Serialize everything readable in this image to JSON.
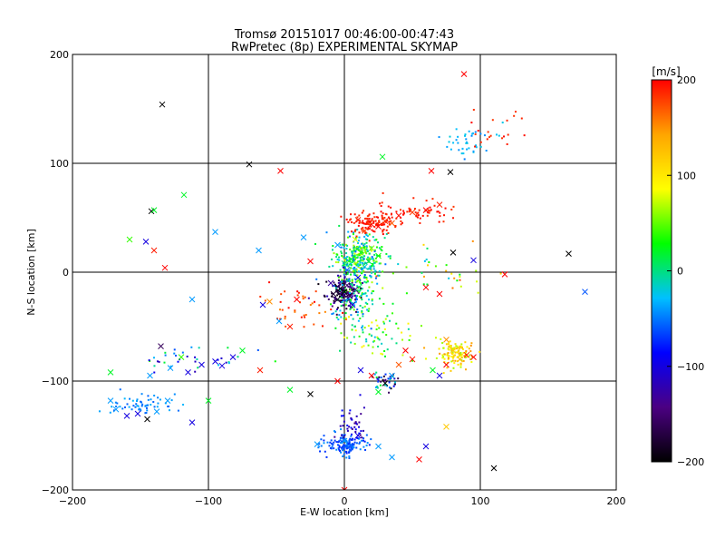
{
  "chart_data": {
    "type": "scatter",
    "title": "Tromsø 20151017 00:46:00-00:47:43",
    "subtitle": "RwPretec (8p) EXPERIMENTAL SKYMAP",
    "xlabel": "E-W location [km]",
    "ylabel": "N-S location [km]",
    "xlim": [
      -200,
      200
    ],
    "ylim": [
      -200,
      200
    ],
    "x_ticks": [
      "−200",
      "−100",
      "0",
      "100",
      "200"
    ],
    "y_ticks": [
      "200",
      "100",
      "0",
      "−100",
      "−200"
    ],
    "grid": "on",
    "colorbar": {
      "label": "[m/s]",
      "range": [
        -200,
        200
      ],
      "ticks": [
        "200",
        "100",
        "0",
        "−100",
        "−200"
      ],
      "colormap": [
        "#000000",
        "#4b0082",
        "#0000ff",
        "#00c0ff",
        "#00ff00",
        "#ffff00",
        "#ffa500",
        "#ff0000"
      ]
    },
    "points": [
      {
        "x": 0,
        "y": -18,
        "v": -200,
        "m": "x"
      },
      {
        "x": -3,
        "y": -15,
        "v": -190,
        "m": "x"
      },
      {
        "x": -8,
        "y": -20,
        "v": -180,
        "m": "x"
      },
      {
        "x": 4,
        "y": -22,
        "v": -160,
        "m": "x"
      },
      {
        "x": 2,
        "y": -12,
        "v": -150,
        "m": "x"
      },
      {
        "x": -5,
        "y": -25,
        "v": -170,
        "m": "x"
      },
      {
        "x": 8,
        "y": -16,
        "v": -140,
        "m": "x"
      },
      {
        "x": -10,
        "y": -10,
        "v": -130,
        "m": "x"
      },
      {
        "x": 6,
        "y": -30,
        "v": -110,
        "m": "x"
      },
      {
        "x": 10,
        "y": -5,
        "v": -90,
        "m": "x"
      },
      {
        "x": 5,
        "y": 12,
        "v": 20,
        "m": "x"
      },
      {
        "x": 12,
        "y": 18,
        "v": 40,
        "m": "x"
      },
      {
        "x": 0,
        "y": 8,
        "v": 0,
        "m": "x"
      },
      {
        "x": 15,
        "y": 5,
        "v": -20,
        "m": "x"
      },
      {
        "x": 20,
        "y": 22,
        "v": 60,
        "m": "x"
      },
      {
        "x": -5,
        "y": 25,
        "v": -40,
        "m": "x"
      },
      {
        "x": 8,
        "y": 30,
        "v": 80,
        "m": "x"
      },
      {
        "x": 18,
        "y": 10,
        "v": 10,
        "m": "x"
      },
      {
        "x": 25,
        "y": 15,
        "v": 30,
        "m": "x"
      },
      {
        "x": 2,
        "y": 2,
        "v": -60,
        "m": "x"
      },
      {
        "x": 10,
        "y": 48,
        "v": 190,
        "m": "x"
      },
      {
        "x": 20,
        "y": 44,
        "v": 200,
        "m": "x"
      },
      {
        "x": 30,
        "y": 47,
        "v": 185,
        "m": "x"
      },
      {
        "x": 40,
        "y": 52,
        "v": 195,
        "m": "x"
      },
      {
        "x": 50,
        "y": 55,
        "v": 180,
        "m": "x"
      },
      {
        "x": 60,
        "y": 57,
        "v": 200,
        "m": "x"
      },
      {
        "x": 70,
        "y": 62,
        "v": 190,
        "m": "x"
      },
      {
        "x": 15,
        "y": 38,
        "v": 175,
        "m": "x"
      },
      {
        "x": 25,
        "y": 42,
        "v": 200,
        "m": "x"
      },
      {
        "x": 35,
        "y": 45,
        "v": 170,
        "m": "x"
      },
      {
        "x": 88,
        "y": 182,
        "v": 200,
        "m": "x"
      },
      {
        "x": -134,
        "y": 154,
        "v": -200,
        "m": "x"
      },
      {
        "x": -70,
        "y": 99,
        "v": -200,
        "m": "x"
      },
      {
        "x": -47,
        "y": 93,
        "v": 200,
        "m": "x"
      },
      {
        "x": 28,
        "y": 106,
        "v": 20,
        "m": "x"
      },
      {
        "x": 64,
        "y": 93,
        "v": 200,
        "m": "x"
      },
      {
        "x": 78,
        "y": 92,
        "v": -200,
        "m": "x"
      },
      {
        "x": -142,
        "y": 56,
        "v": -200,
        "m": "x"
      },
      {
        "x": -140,
        "y": 57,
        "v": 20,
        "m": "x"
      },
      {
        "x": -158,
        "y": 30,
        "v": 40,
        "m": "x"
      },
      {
        "x": -146,
        "y": 28,
        "v": -100,
        "m": "x"
      },
      {
        "x": -140,
        "y": 20,
        "v": 190,
        "m": "x"
      },
      {
        "x": -132,
        "y": 4,
        "v": 200,
        "m": "x"
      },
      {
        "x": -118,
        "y": 71,
        "v": 20,
        "m": "x"
      },
      {
        "x": -95,
        "y": 37,
        "v": -40,
        "m": "x"
      },
      {
        "x": -63,
        "y": 20,
        "v": -40,
        "m": "x"
      },
      {
        "x": -30,
        "y": 32,
        "v": -40,
        "m": "x"
      },
      {
        "x": -25,
        "y": 10,
        "v": 200,
        "m": "x"
      },
      {
        "x": -35,
        "y": -25,
        "v": 200,
        "m": "x"
      },
      {
        "x": -40,
        "y": -50,
        "v": 190,
        "m": "x"
      },
      {
        "x": -55,
        "y": -27,
        "v": 150,
        "m": "x"
      },
      {
        "x": -112,
        "y": -25,
        "v": -40,
        "m": "x"
      },
      {
        "x": -60,
        "y": -30,
        "v": -100,
        "m": "x"
      },
      {
        "x": -48,
        "y": -45,
        "v": -40,
        "m": "x"
      },
      {
        "x": 80,
        "y": 18,
        "v": -200,
        "m": "x"
      },
      {
        "x": 95,
        "y": 11,
        "v": -100,
        "m": "x"
      },
      {
        "x": 118,
        "y": -2,
        "v": 200,
        "m": "x"
      },
      {
        "x": 165,
        "y": 17,
        "v": -200,
        "m": "x"
      },
      {
        "x": 177,
        "y": -18,
        "v": -60,
        "m": "x"
      },
      {
        "x": 60,
        "y": -14,
        "v": 200,
        "m": "x"
      },
      {
        "x": 70,
        "y": -20,
        "v": 200,
        "m": "x"
      },
      {
        "x": 75,
        "y": -62,
        "v": 150,
        "m": "x"
      },
      {
        "x": 80,
        "y": -72,
        "v": 120,
        "m": "x"
      },
      {
        "x": 85,
        "y": -80,
        "v": 130,
        "m": "x"
      },
      {
        "x": 90,
        "y": -76,
        "v": 190,
        "m": "x"
      },
      {
        "x": 95,
        "y": -78,
        "v": 200,
        "m": "x"
      },
      {
        "x": 75,
        "y": -85,
        "v": 200,
        "m": "x"
      },
      {
        "x": 70,
        "y": -95,
        "v": -100,
        "m": "x"
      },
      {
        "x": 65,
        "y": -90,
        "v": 20,
        "m": "x"
      },
      {
        "x": 50,
        "y": -80,
        "v": 190,
        "m": "x"
      },
      {
        "x": 45,
        "y": -72,
        "v": 200,
        "m": "x"
      },
      {
        "x": 40,
        "y": -85,
        "v": 170,
        "m": "x"
      },
      {
        "x": 35,
        "y": -95,
        "v": -40,
        "m": "x"
      },
      {
        "x": 30,
        "y": -102,
        "v": -200,
        "m": "x"
      },
      {
        "x": 25,
        "y": -110,
        "v": 20,
        "m": "x"
      },
      {
        "x": 20,
        "y": -95,
        "v": 200,
        "m": "x"
      },
      {
        "x": 12,
        "y": -90,
        "v": -100,
        "m": "x"
      },
      {
        "x": -5,
        "y": -100,
        "v": 200,
        "m": "x"
      },
      {
        "x": -25,
        "y": -112,
        "v": -200,
        "m": "x"
      },
      {
        "x": -40,
        "y": -108,
        "v": 20,
        "m": "x"
      },
      {
        "x": -120,
        "y": -78,
        "v": 40,
        "m": "x"
      },
      {
        "x": -135,
        "y": -68,
        "v": -160,
        "m": "x"
      },
      {
        "x": -128,
        "y": -88,
        "v": -40,
        "m": "x"
      },
      {
        "x": -115,
        "y": -92,
        "v": -100,
        "m": "x"
      },
      {
        "x": -105,
        "y": -85,
        "v": -100,
        "m": "x"
      },
      {
        "x": -95,
        "y": -82,
        "v": -100,
        "m": "x"
      },
      {
        "x": -90,
        "y": -86,
        "v": -100,
        "m": "x"
      },
      {
        "x": -82,
        "y": -78,
        "v": -100,
        "m": "x"
      },
      {
        "x": -75,
        "y": -72,
        "v": 20,
        "m": "x"
      },
      {
        "x": -62,
        "y": -90,
        "v": 190,
        "m": "x"
      },
      {
        "x": -172,
        "y": -118,
        "v": -40,
        "m": "x"
      },
      {
        "x": -168,
        "y": -126,
        "v": -40,
        "m": "x"
      },
      {
        "x": -160,
        "y": -132,
        "v": -100,
        "m": "x"
      },
      {
        "x": -152,
        "y": -130,
        "v": -100,
        "m": "x"
      },
      {
        "x": -145,
        "y": -135,
        "v": -200,
        "m": "x"
      },
      {
        "x": -138,
        "y": -128,
        "v": -40,
        "m": "x"
      },
      {
        "x": -130,
        "y": -118,
        "v": -40,
        "m": "x"
      },
      {
        "x": -112,
        "y": -138,
        "v": -100,
        "m": "x"
      },
      {
        "x": -100,
        "y": -118,
        "v": 20,
        "m": "x"
      },
      {
        "x": -172,
        "y": -92,
        "v": 20,
        "m": "x"
      },
      {
        "x": -143,
        "y": -95,
        "v": -40,
        "m": "x"
      },
      {
        "x": 0,
        "y": -155,
        "v": -40,
        "m": "x"
      },
      {
        "x": -20,
        "y": -158,
        "v": -40,
        "m": "x"
      },
      {
        "x": 10,
        "y": -150,
        "v": -100,
        "m": "x"
      },
      {
        "x": 25,
        "y": -160,
        "v": -40,
        "m": "x"
      },
      {
        "x": 35,
        "y": -170,
        "v": -40,
        "m": "x"
      },
      {
        "x": 55,
        "y": -172,
        "v": 200,
        "m": "x"
      },
      {
        "x": 60,
        "y": -160,
        "v": -100,
        "m": "x"
      },
      {
        "x": 75,
        "y": -142,
        "v": 120,
        "m": "x"
      },
      {
        "x": 110,
        "y": -180,
        "v": -200,
        "m": "x"
      },
      {
        "x": 0,
        "y": -200,
        "v": 200,
        "m": "x"
      }
    ],
    "clusters": [
      {
        "cx": 10,
        "cy": 12,
        "sx": 9,
        "sy": 12,
        "n": 320,
        "vmin": -60,
        "vmax": 80
      },
      {
        "cx": -2,
        "cy": -18,
        "sx": 6,
        "sy": 7,
        "n": 160,
        "vmin": -200,
        "vmax": -110
      },
      {
        "cx": 8,
        "cy": -25,
        "sx": 10,
        "sy": 14,
        "n": 140,
        "vmin": -60,
        "vmax": 60
      },
      {
        "cx": 20,
        "cy": 45,
        "sx": 10,
        "sy": 5,
        "n": 110,
        "vmin": 180,
        "vmax": 200
      },
      {
        "cx": 50,
        "cy": 55,
        "sx": 14,
        "sy": 5,
        "n": 70,
        "vmin": 180,
        "vmax": 200
      },
      {
        "cx": 82,
        "cy": -75,
        "sx": 7,
        "sy": 6,
        "n": 120,
        "vmin": 60,
        "vmax": 150
      },
      {
        "cx": 2,
        "cy": -158,
        "sx": 8,
        "sy": 5,
        "n": 140,
        "vmin": -80,
        "vmax": -40
      },
      {
        "cx": 5,
        "cy": -140,
        "sx": 5,
        "sy": 8,
        "n": 40,
        "vmin": -140,
        "vmax": -80
      },
      {
        "cx": 30,
        "cy": -100,
        "sx": 5,
        "sy": 4,
        "n": 40,
        "vmin": -200,
        "vmax": 30
      },
      {
        "cx": 25,
        "cy": -60,
        "sx": 15,
        "sy": 10,
        "n": 60,
        "vmin": -20,
        "vmax": 100
      },
      {
        "cx": -150,
        "cy": -122,
        "sx": 10,
        "sy": 5,
        "n": 60,
        "vmin": -60,
        "vmax": -30
      },
      {
        "cx": 90,
        "cy": 120,
        "sx": 12,
        "sy": 10,
        "n": 40,
        "vmin": -50,
        "vmax": -20
      },
      {
        "cx": 110,
        "cy": 130,
        "sx": 10,
        "sy": 10,
        "n": 20,
        "vmin": 180,
        "vmax": 200
      },
      {
        "cx": -100,
        "cy": -80,
        "sx": 25,
        "sy": 6,
        "n": 35,
        "vmin": -120,
        "vmax": 40
      },
      {
        "cx": 70,
        "cy": 0,
        "sx": 25,
        "sy": 10,
        "n": 30,
        "vmin": -40,
        "vmax": 200
      },
      {
        "cx": -30,
        "cy": -35,
        "sx": 12,
        "sy": 12,
        "n": 40,
        "vmin": 150,
        "vmax": 200
      }
    ]
  }
}
